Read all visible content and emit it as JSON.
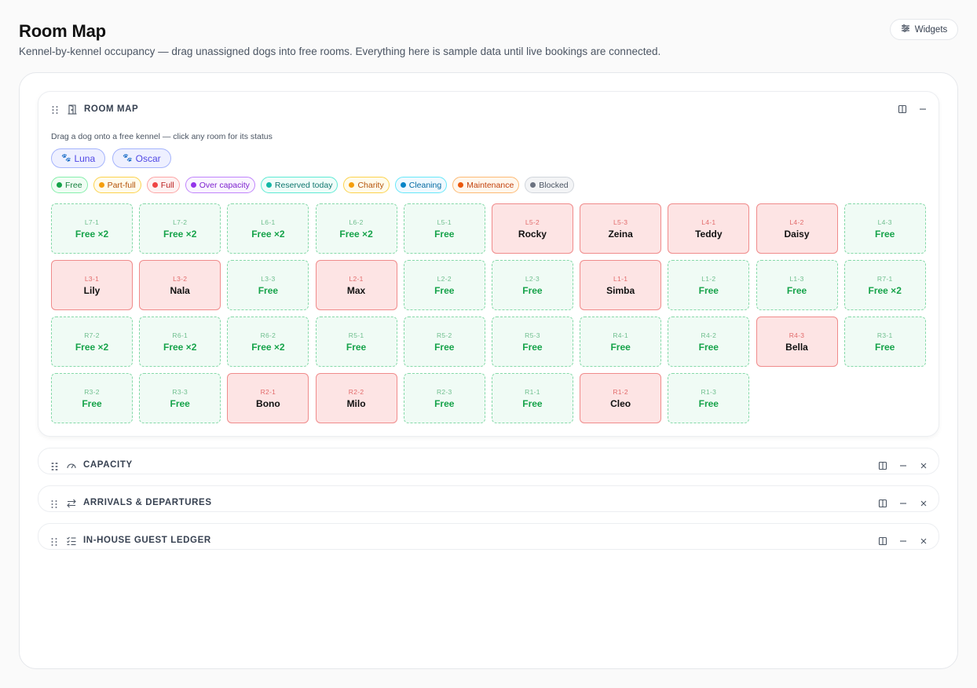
{
  "header": {
    "title": "Room Map",
    "subtitle": "Kennel-by-kennel occupancy — drag unassigned dogs into free rooms. Everything here is sample data until live bookings are connected.",
    "widgets_label": "Widgets"
  },
  "room_map": {
    "title": "ROOM MAP",
    "hint": "Drag a dog onto a free kennel — click any room for its status",
    "unassigned_dogs": [
      {
        "name": "Luna",
        "icon": "paw-icon"
      },
      {
        "name": "Oscar",
        "icon": "paw-icon"
      }
    ],
    "legend": [
      {
        "label": "Free",
        "color": "#16a34a",
        "bg": "#f0fdf4",
        "border": "#86efac",
        "text": "#15803d"
      },
      {
        "label": "Part-full",
        "color": "#f59e0b",
        "bg": "#fffbeb",
        "border": "#fcd34d",
        "text": "#b45309"
      },
      {
        "label": "Full",
        "color": "#ef4444",
        "bg": "#fef2f2",
        "border": "#fca5a5",
        "text": "#b91c1c"
      },
      {
        "label": "Over capacity",
        "color": "#9333ea",
        "bg": "#faf5ff",
        "border": "#c084fc",
        "text": "#7e22ce"
      },
      {
        "label": "Reserved today",
        "color": "#14b8a6",
        "bg": "#f0fdfa",
        "border": "#5eead4",
        "text": "#0f766e"
      },
      {
        "label": "Charity",
        "color": "#f59e0b",
        "bg": "#fffbeb",
        "border": "#fcd34d",
        "text": "#b45309"
      },
      {
        "label": "Cleaning",
        "color": "#0284c7",
        "bg": "#f0f9ff",
        "border": "#67e8f9",
        "text": "#0369a1"
      },
      {
        "label": "Maintenance",
        "color": "#ea580c",
        "bg": "#fff7ed",
        "border": "#fdba74",
        "text": "#c2410c"
      },
      {
        "label": "Blocked",
        "color": "#6b7280",
        "bg": "#f3f4f6",
        "border": "#d1d5db",
        "text": "#4b5563"
      }
    ],
    "rooms": [
      {
        "id": "L7-1",
        "status": "free",
        "label": "Free ×2"
      },
      {
        "id": "L7-2",
        "status": "free",
        "label": "Free ×2"
      },
      {
        "id": "L6-1",
        "status": "free",
        "label": "Free ×2"
      },
      {
        "id": "L6-2",
        "status": "free",
        "label": "Free ×2"
      },
      {
        "id": "L5-1",
        "status": "free",
        "label": "Free"
      },
      {
        "id": "L5-2",
        "status": "full",
        "label": "Rocky"
      },
      {
        "id": "L5-3",
        "status": "full",
        "label": "Zeina"
      },
      {
        "id": "L4-1",
        "status": "full",
        "label": "Teddy"
      },
      {
        "id": "L4-2",
        "status": "full",
        "label": "Daisy"
      },
      {
        "id": "L4-3",
        "status": "free",
        "label": "Free"
      },
      {
        "id": "L3-1",
        "status": "full",
        "label": "Lily"
      },
      {
        "id": "L3-2",
        "status": "full",
        "label": "Nala"
      },
      {
        "id": "L3-3",
        "status": "free",
        "label": "Free"
      },
      {
        "id": "L2-1",
        "status": "full",
        "label": "Max"
      },
      {
        "id": "L2-2",
        "status": "free",
        "label": "Free"
      },
      {
        "id": "L2-3",
        "status": "free",
        "label": "Free"
      },
      {
        "id": "L1-1",
        "status": "full",
        "label": "Simba"
      },
      {
        "id": "L1-2",
        "status": "free",
        "label": "Free"
      },
      {
        "id": "L1-3",
        "status": "free",
        "label": "Free"
      },
      {
        "id": "R7-1",
        "status": "free",
        "label": "Free ×2"
      },
      {
        "id": "R7-2",
        "status": "free",
        "label": "Free ×2"
      },
      {
        "id": "R6-1",
        "status": "free",
        "label": "Free ×2"
      },
      {
        "id": "R6-2",
        "status": "free",
        "label": "Free ×2"
      },
      {
        "id": "R5-1",
        "status": "free",
        "label": "Free"
      },
      {
        "id": "R5-2",
        "status": "free",
        "label": "Free"
      },
      {
        "id": "R5-3",
        "status": "free",
        "label": "Free"
      },
      {
        "id": "R4-1",
        "status": "free",
        "label": "Free"
      },
      {
        "id": "R4-2",
        "status": "free",
        "label": "Free"
      },
      {
        "id": "R4-3",
        "status": "full",
        "label": "Bella"
      },
      {
        "id": "R3-1",
        "status": "free",
        "label": "Free"
      },
      {
        "id": "R3-2",
        "status": "free",
        "label": "Free"
      },
      {
        "id": "R3-3",
        "status": "free",
        "label": "Free"
      },
      {
        "id": "R2-1",
        "status": "full",
        "label": "Bono"
      },
      {
        "id": "R2-2",
        "status": "full",
        "label": "Milo"
      },
      {
        "id": "R2-3",
        "status": "free",
        "label": "Free"
      },
      {
        "id": "R1-1",
        "status": "free",
        "label": "Free"
      },
      {
        "id": "R1-2",
        "status": "full",
        "label": "Cleo"
      },
      {
        "id": "R1-3",
        "status": "free",
        "label": "Free"
      }
    ]
  },
  "collapsed_panels": {
    "capacity": {
      "title": "CAPACITY",
      "icon": "gauge-icon"
    },
    "arrivals": {
      "title": "ARRIVALS & DEPARTURES",
      "icon": "swap-arrows-icon"
    },
    "ledger": {
      "title": "IN-HOUSE GUEST LEDGER",
      "icon": "checklist-icon"
    }
  }
}
